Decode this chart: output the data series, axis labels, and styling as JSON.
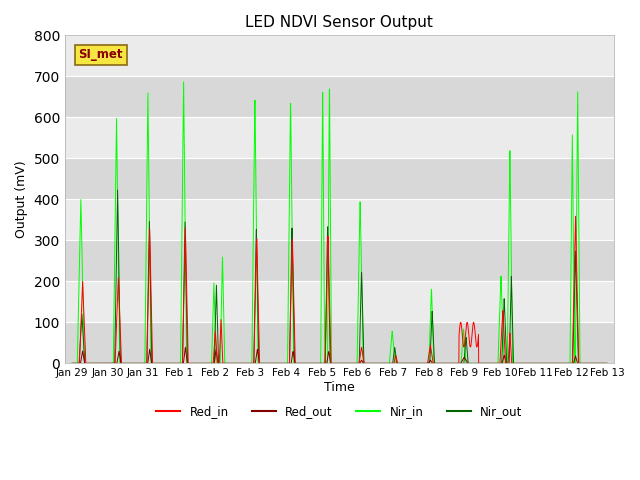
{
  "title": "LED NDVI Sensor Output",
  "xlabel": "Time",
  "ylabel": "Output (mV)",
  "ylim": [
    0,
    800
  ],
  "xlim_start": -0.2,
  "xlim_end": 15.2,
  "x_tick_labels": [
    "Jan 29",
    "Jan 30",
    "Jan 31",
    "Feb 1",
    "Feb 2",
    "Feb 3",
    "Feb 4",
    "Feb 5",
    "Feb 6",
    "Feb 7",
    "Feb 8",
    "Feb 9",
    "Feb 10",
    "Feb 11",
    "Feb 12",
    "Feb 13"
  ],
  "x_tick_positions": [
    0,
    1,
    2,
    3,
    4,
    5,
    6,
    7,
    8,
    9,
    10,
    11,
    12,
    13,
    14,
    15
  ],
  "colors": {
    "Red_in": "#ff0000",
    "Red_out": "#800000",
    "Nir_in": "#00ff00",
    "Nir_out": "#006400"
  },
  "legend_label": "SI_met",
  "background_color": "#ebebeb",
  "fig_background": "#ffffff",
  "grid_color": "#ffffff",
  "band_colors": [
    "#d8d8d8",
    "#ebebeb"
  ]
}
